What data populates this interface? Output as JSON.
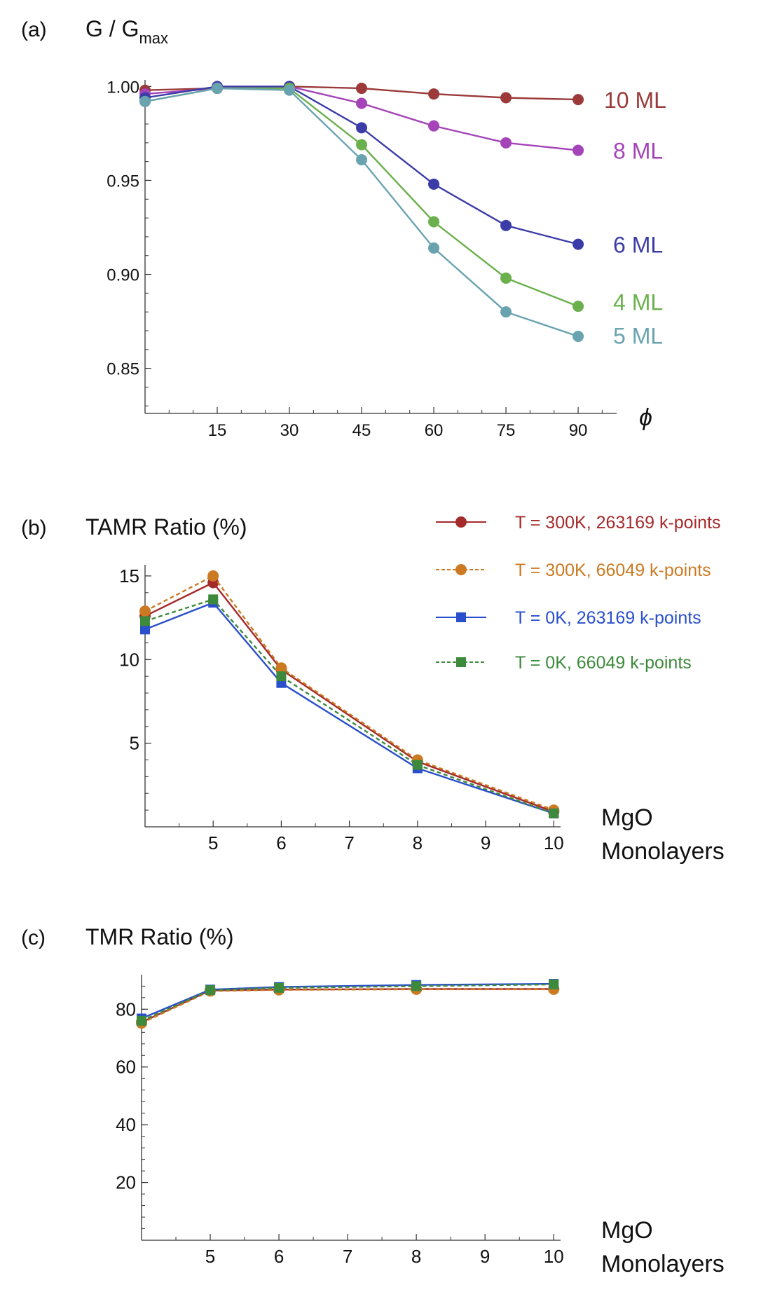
{
  "chart_data": [
    {
      "panel": "(a)",
      "type": "line",
      "title": "G / G",
      "title_sub": "max",
      "xlabel": "ϕ",
      "ylabel": "G / Gmax",
      "x": [
        0,
        15,
        30,
        45,
        60,
        75,
        90
      ],
      "xticks": [
        15,
        30,
        45,
        60,
        75,
        90
      ],
      "yticks": [
        "0.85",
        "0.90",
        "0.95",
        "1.00"
      ],
      "xlim": [
        0,
        98
      ],
      "ylim": [
        0.826,
        1.002
      ],
      "series": [
        {
          "name": "10 ML",
          "color": "#9c3a3a",
          "values": [
            0.998,
            0.999,
            1.0,
            0.999,
            0.996,
            0.994,
            0.993
          ]
        },
        {
          "name": "8 ML",
          "color": "#a444b8",
          "values": [
            0.996,
            0.999,
            1.0,
            0.991,
            0.979,
            0.97,
            0.966
          ]
        },
        {
          "name": "6 ML",
          "color": "#3c3ca8",
          "values": [
            0.994,
            1.0,
            1.0,
            0.978,
            0.948,
            0.926,
            0.916
          ]
        },
        {
          "name": "4 ML",
          "color": "#6ab04c",
          "values": [
            0.992,
            0.999,
            0.999,
            0.969,
            0.928,
            0.898,
            0.883
          ]
        },
        {
          "name": "5 ML",
          "color": "#6aa3b0",
          "values": [
            0.992,
            0.999,
            0.998,
            0.961,
            0.914,
            0.88,
            0.867
          ]
        }
      ]
    },
    {
      "panel": "(b)",
      "type": "line",
      "title": "TAMR Ratio (%)",
      "xlabel": [
        "MgO",
        "Monolayers"
      ],
      "x": [
        4,
        5,
        6,
        8,
        10
      ],
      "xticks": [
        5,
        6,
        7,
        8,
        9,
        10
      ],
      "yticks": [
        5,
        10,
        15
      ],
      "xlim": [
        4,
        10.1
      ],
      "ylim": [
        0,
        15.5
      ],
      "series": [
        {
          "name": "T = 300K, 263169 k-points",
          "color": "#a52a2a",
          "dashed": false,
          "marker": "circle",
          "values": [
            12.6,
            14.6,
            9.4,
            3.9,
            0.9
          ]
        },
        {
          "name": "T = 300K, 66049 k-points",
          "color": "#cc7a22",
          "dashed": true,
          "marker": "circle",
          "values": [
            12.9,
            15.0,
            9.5,
            4.0,
            1.0
          ]
        },
        {
          "name": "T = 0K, 263169 k-points",
          "color": "#2a4fcc",
          "dashed": false,
          "marker": "square",
          "values": [
            11.8,
            13.4,
            8.6,
            3.5,
            0.8
          ]
        },
        {
          "name": "T = 0K, 66049 k-points",
          "color": "#3d8a3d",
          "dashed": true,
          "marker": "square",
          "values": [
            12.3,
            13.6,
            9.0,
            3.7,
            0.8
          ]
        }
      ]
    },
    {
      "panel": "(c)",
      "type": "line",
      "title": "TMR Ratio (%)",
      "xlabel": [
        "MgO",
        "Monolayers"
      ],
      "x": [
        4,
        5,
        6,
        8,
        10
      ],
      "xticks": [
        5,
        6,
        7,
        8,
        9,
        10
      ],
      "yticks": [
        20,
        40,
        60,
        80
      ],
      "xlim": [
        4,
        10.1
      ],
      "ylim": [
        0,
        91
      ],
      "series": [
        {
          "name": "T = 300K, 263169 k-points",
          "color": "#a52a2a",
          "dashed": false,
          "marker": "circle",
          "values": [
            75.5,
            86.5,
            86.8,
            87.0,
            87.0
          ]
        },
        {
          "name": "T = 300K, 66049 k-points",
          "color": "#cc7a22",
          "dashed": true,
          "marker": "circle",
          "values": [
            75.2,
            86.3,
            86.7,
            86.9,
            86.9
          ]
        },
        {
          "name": "T = 0K, 263169 k-points",
          "color": "#2a4fcc",
          "dashed": false,
          "marker": "square",
          "values": [
            76.8,
            86.8,
            87.7,
            88.4,
            88.8
          ]
        },
        {
          "name": "T = 0K, 66049 k-points",
          "color": "#3d8a3d",
          "dashed": true,
          "marker": "square",
          "values": [
            76.0,
            86.6,
            87.4,
            88.0,
            88.6
          ]
        }
      ]
    }
  ]
}
